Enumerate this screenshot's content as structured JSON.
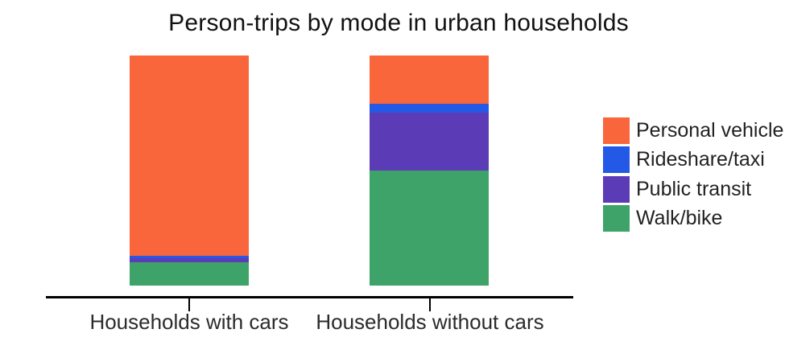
{
  "chart_data": {
    "type": "bar",
    "stacked": true,
    "orientation": "vertical",
    "title": "Person-trips by mode in urban households",
    "categories": [
      "Households with cars",
      "Households without cars"
    ],
    "series": [
      {
        "name": "Personal vehicle",
        "color": "#F9663C",
        "values": [
          87,
          21
        ]
      },
      {
        "name": "Rideshare/taxi",
        "color": "#2458E6",
        "values": [
          1,
          4
        ]
      },
      {
        "name": "Public transit",
        "color": "#5C3CB6",
        "values": [
          2,
          25
        ]
      },
      {
        "name": "Walk/bike",
        "color": "#3EA368",
        "values": [
          10,
          50
        ]
      }
    ],
    "value_note": "segment values estimated as percent of total bar height; no y-axis or data labels shown",
    "ylim": [
      0,
      100
    ],
    "grid": false,
    "legend_position": "right",
    "axes": {
      "x_visible": true,
      "y_visible": false
    }
  },
  "colors": {
    "background": "#ffffff",
    "axis": "#000000",
    "title_text": "#111111",
    "label_text": "#2b2b2b"
  }
}
